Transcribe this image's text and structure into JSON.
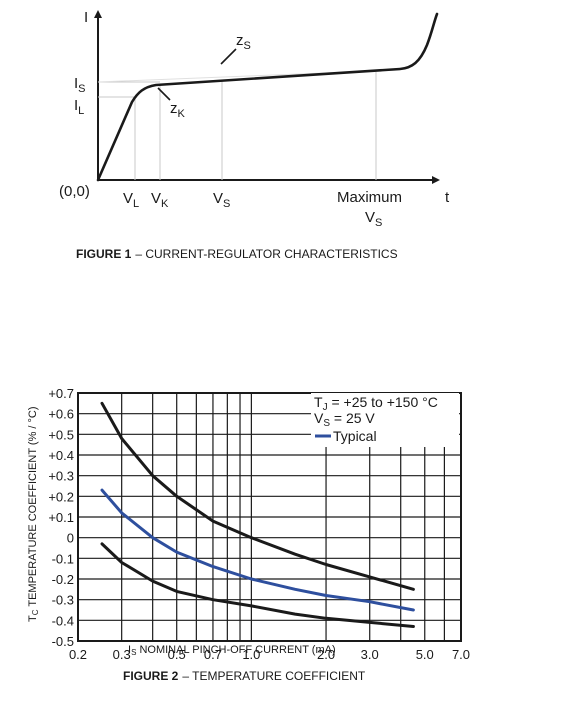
{
  "chart_data": [
    {
      "type": "line",
      "title": "",
      "caption": {
        "number": "FIGURE 1",
        "text": "– CURRENT-REGULATOR CHARACTERISTICS"
      },
      "y_axis_label": "I",
      "x_axis_label": "t",
      "origin_label": "(0,0)",
      "y_ticks": [
        {
          "label": "I",
          "sub": "S"
        },
        {
          "label": "I",
          "sub": "L"
        }
      ],
      "x_ticks": [
        {
          "label": "V",
          "sub": "L"
        },
        {
          "label": "V",
          "sub": "K"
        },
        {
          "label": "V",
          "sub": "S"
        },
        {
          "label": "Maximum",
          "label2": "V",
          "sub": "S"
        }
      ],
      "annotations": [
        {
          "label": "z",
          "sub": "S"
        },
        {
          "label": "z",
          "sub": "K"
        }
      ],
      "curve_color": "#1a1a1a"
    },
    {
      "type": "line",
      "title": "",
      "caption": {
        "number": "FIGURE 2",
        "text": "– TEMPERATURE COEFFICIENT"
      },
      "ylabel": {
        "prefix": "T",
        "sub": "C",
        "text": " TEMPERATURE COEFFICIENT (% / °C)"
      },
      "xlabel": {
        "prefix": "I",
        "sub": "S",
        "text": " NOMINAL PINCH-OFF CURRENT (mA)"
      },
      "x_scale": "log",
      "xlim": [
        0.2,
        7.0
      ],
      "ylim": [
        -0.5,
        0.7
      ],
      "x_tick_labels": [
        "0.2",
        "0.3",
        "0.5",
        "0.7",
        "1.0",
        "2.0",
        "3.0",
        "5.0",
        "7.0"
      ],
      "x_tick_values": [
        0.2,
        0.3,
        0.5,
        0.7,
        1.0,
        2.0,
        3.0,
        5.0,
        7.0
      ],
      "y_tick_labels": [
        "+0.7",
        "+0.6",
        "+0.5",
        "+0.4",
        "+0.3",
        "+0.2",
        "+0.1",
        "0",
        "-0.1",
        "-0.2",
        "-0.3",
        "-0.4",
        "-0.5"
      ],
      "y_tick_values": [
        0.7,
        0.6,
        0.5,
        0.4,
        0.3,
        0.2,
        0.1,
        0,
        -0.1,
        -0.2,
        -0.3,
        -0.4,
        -0.5
      ],
      "grid": true,
      "conditions": [
        {
          "prefix": "T",
          "sub": "J",
          "text": " = +25 to +150 °C"
        },
        {
          "prefix": "V",
          "sub": "S",
          "text": " = 25 V"
        }
      ],
      "series": [
        {
          "color": "#1a1a1a",
          "x": [
            0.25,
            0.3,
            0.4,
            0.5,
            0.7,
            1.0,
            1.5,
            2.0,
            3.0,
            4.5
          ],
          "y": [
            0.65,
            0.48,
            0.3,
            0.2,
            0.08,
            0.0,
            -0.08,
            -0.13,
            -0.19,
            -0.25
          ]
        },
        {
          "name": "Typical",
          "color": "#2e4f9e",
          "x": [
            0.25,
            0.3,
            0.4,
            0.5,
            0.7,
            1.0,
            1.5,
            2.0,
            3.0,
            4.5
          ],
          "y": [
            0.23,
            0.12,
            0.0,
            -0.07,
            -0.14,
            -0.2,
            -0.25,
            -0.28,
            -0.31,
            -0.35
          ]
        },
        {
          "color": "#1a1a1a",
          "x": [
            0.25,
            0.3,
            0.4,
            0.5,
            0.7,
            1.0,
            1.5,
            2.0,
            3.0,
            4.5
          ],
          "y": [
            -0.03,
            -0.12,
            -0.21,
            -0.26,
            -0.3,
            -0.33,
            -0.37,
            -0.39,
            -0.41,
            -0.43
          ]
        }
      ]
    }
  ]
}
